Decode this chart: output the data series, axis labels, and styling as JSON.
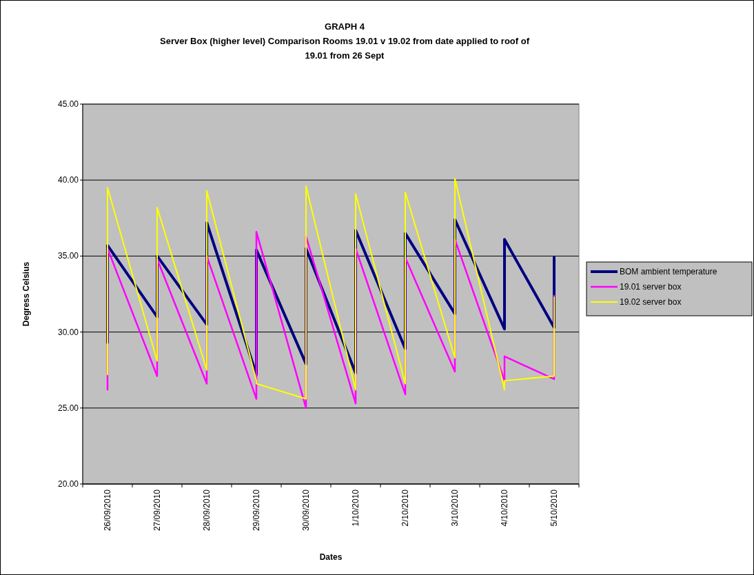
{
  "chart_data": {
    "type": "line",
    "title": "GRAPH 4",
    "subtitle": "Server Box (higher level) Comparison Rooms 19.01 v 19.02 from date applied to roof of 19.01 from 26 Sept",
    "xlabel": "Dates",
    "ylabel": "Degress Celsius",
    "x": [
      "2010-09-26",
      "2010-09-26",
      "2010-09-27",
      "2010-09-27",
      "2010-09-28",
      "2010-09-28",
      "2010-09-29",
      "2010-09-29",
      "2010-09-30",
      "2010-09-30",
      "2010-10-01",
      "2010-10-01",
      "2010-10-02",
      "2010-10-02",
      "2010-10-03",
      "2010-10-03",
      "2010-10-04",
      "2010-10-04",
      "2010-10-05",
      "2010-10-05"
    ],
    "xlim": [
      "2010-09-25T12:00",
      "2010-10-05T12:00"
    ],
    "xticks": [
      {
        "value": "2010-09-26",
        "label": "26/09/2010"
      },
      {
        "value": "2010-09-27",
        "label": "27/09/2010"
      },
      {
        "value": "2010-09-28",
        "label": "28/09/2010"
      },
      {
        "value": "2010-09-29",
        "label": "29/09/2010"
      },
      {
        "value": "2010-09-30",
        "label": "30/09/2010"
      },
      {
        "value": "2010-10-01",
        "label": "1/10/2010"
      },
      {
        "value": "2010-10-02",
        "label": "2/10/2010"
      },
      {
        "value": "2010-10-03",
        "label": "3/10/2010"
      },
      {
        "value": "2010-10-04",
        "label": "4/10/2010"
      },
      {
        "value": "2010-10-05",
        "label": "5/10/2010"
      }
    ],
    "ylim": [
      20,
      45
    ],
    "yticks": [
      {
        "value": 20,
        "label": "20.00"
      },
      {
        "value": 25,
        "label": "25.00"
      },
      {
        "value": 30,
        "label": "30.00"
      },
      {
        "value": 35,
        "label": "35.00"
      },
      {
        "value": 40,
        "label": "40.00"
      },
      {
        "value": 45,
        "label": "45.00"
      }
    ],
    "grid": "y",
    "legend": "right",
    "marker": "none",
    "series": [
      {
        "name": "BOM ambient temperature",
        "color": "#000080",
        "values": [
          29.3,
          35.7,
          31.0,
          35.0,
          30.5,
          37.2,
          27.2,
          35.4,
          27.9,
          35.5,
          27.3,
          36.7,
          28.9,
          36.5,
          31.2,
          37.4,
          30.2,
          36.1,
          30.3,
          34.9
        ]
      },
      {
        "name": "19.01 server box",
        "color": "#ff00ff",
        "values": [
          26.2,
          35.5,
          27.1,
          34.8,
          26.6,
          35.0,
          25.6,
          36.6,
          25.0,
          36.3,
          25.3,
          35.5,
          25.9,
          34.9,
          27.4,
          36.1,
          26.8,
          28.4,
          26.9,
          32.4
        ]
      },
      {
        "name": "19.02 server box",
        "color": "#ffff00",
        "values": [
          27.2,
          39.5,
          28.1,
          38.2,
          27.5,
          39.3,
          26.8,
          26.6,
          25.6,
          39.6,
          26.2,
          39.1,
          26.6,
          39.2,
          28.3,
          40.1,
          26.2,
          26.8,
          27.1,
          32.3
        ]
      }
    ]
  }
}
